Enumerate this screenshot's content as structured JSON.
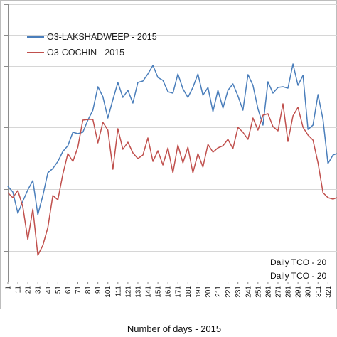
{
  "chart_data": {
    "type": "line",
    "title": "",
    "xlabel": "Number of days - 2015",
    "ylabel": "",
    "x_ticks": [
      "1",
      "11",
      "21",
      "31",
      "41",
      "51",
      "61",
      "71",
      "81",
      "91",
      "101",
      "111",
      "121",
      "131",
      "141",
      "151",
      "161",
      "171",
      "181",
      "191",
      "201",
      "211",
      "221",
      "231",
      "241",
      "251",
      "261",
      "271",
      "281",
      "291",
      "301",
      "311",
      "321"
    ],
    "xlim": [
      1,
      330
    ],
    "grid": true,
    "legend": "top-left",
    "annotations": [
      "Daily TCO - 20",
      "Daily TCO - 20"
    ],
    "series": [
      {
        "name": "O3-LAKSHADWEEP - 2015",
        "color": "#4a7ebb",
        "x": [
          1,
          6,
          11,
          16,
          21,
          26,
          31,
          36,
          41,
          46,
          51,
          56,
          61,
          66,
          71,
          76,
          81,
          86,
          91,
          96,
          101,
          106,
          111,
          116,
          121,
          126,
          131,
          136,
          141,
          146,
          151,
          156,
          161,
          166,
          171,
          176,
          181,
          186,
          191,
          196,
          201,
          206,
          211,
          216,
          221,
          226,
          231,
          236,
          241,
          246,
          251,
          256,
          261,
          266,
          271,
          276,
          281,
          286,
          291,
          296,
          301,
          306,
          311,
          316,
          321,
          326,
          330
        ],
        "y": [
          262,
          270,
          300,
          283,
          267,
          254,
          302,
          275,
          243,
          237,
          227,
          213,
          205,
          186,
          188,
          186,
          169,
          155,
          122,
          136,
          166,
          140,
          116,
          137,
          127,
          145,
          116,
          114,
          104,
          92,
          109,
          113,
          129,
          131,
          104,
          125,
          137,
          123,
          104,
          134,
          123,
          157,
          127,
          152,
          127,
          118,
          135,
          155,
          105,
          120,
          153,
          176,
          115,
          131,
          123,
          122,
          124,
          90,
          120,
          106,
          182,
          176,
          133,
          168,
          230,
          218,
          216
        ]
      },
      {
        "name": "O3-COCHIN - 2015",
        "color": "#c0504d",
        "x": [
          1,
          6,
          11,
          16,
          21,
          26,
          31,
          36,
          41,
          46,
          51,
          56,
          61,
          66,
          71,
          76,
          81,
          86,
          91,
          96,
          101,
          106,
          111,
          116,
          121,
          126,
          131,
          136,
          141,
          146,
          151,
          156,
          161,
          166,
          171,
          176,
          181,
          186,
          191,
          196,
          201,
          206,
          211,
          216,
          221,
          226,
          231,
          236,
          241,
          246,
          251,
          256,
          261,
          266,
          271,
          276,
          281,
          286,
          291,
          296,
          301,
          306,
          311,
          316,
          321,
          326,
          330
        ],
        "y": [
          271,
          278,
          268,
          291,
          337,
          294,
          359,
          345,
          320,
          275,
          281,
          245,
          216,
          227,
          207,
          169,
          168,
          168,
          201,
          172,
          183,
          238,
          181,
          210,
          200,
          215,
          223,
          218,
          194,
          227,
          212,
          232,
          208,
          243,
          204,
          229,
          207,
          243,
          216,
          235,
          203,
          214,
          208,
          205,
          196,
          209,
          179,
          186,
          196,
          166,
          183,
          162,
          160,
          178,
          184,
          146,
          199,
          163,
          151,
          179,
          190,
          197,
          229,
          271,
          278,
          280,
          278
        ]
      }
    ]
  },
  "legend": {
    "lakshadweep_label": "O3-LAKSHADWEEP - 2015",
    "cochin_label": "O3-COCHIN - 2015"
  },
  "notes": {
    "line1": "Daily TCO - 20",
    "line2": "Daily TCO - 20"
  },
  "axis": {
    "xlabel": "Number of days - 2015"
  },
  "colors": {
    "lakshadweep": "#4a7ebb",
    "cochin": "#c0504d",
    "grid": "#d6d6d6",
    "axis": "#8c8c8c"
  }
}
